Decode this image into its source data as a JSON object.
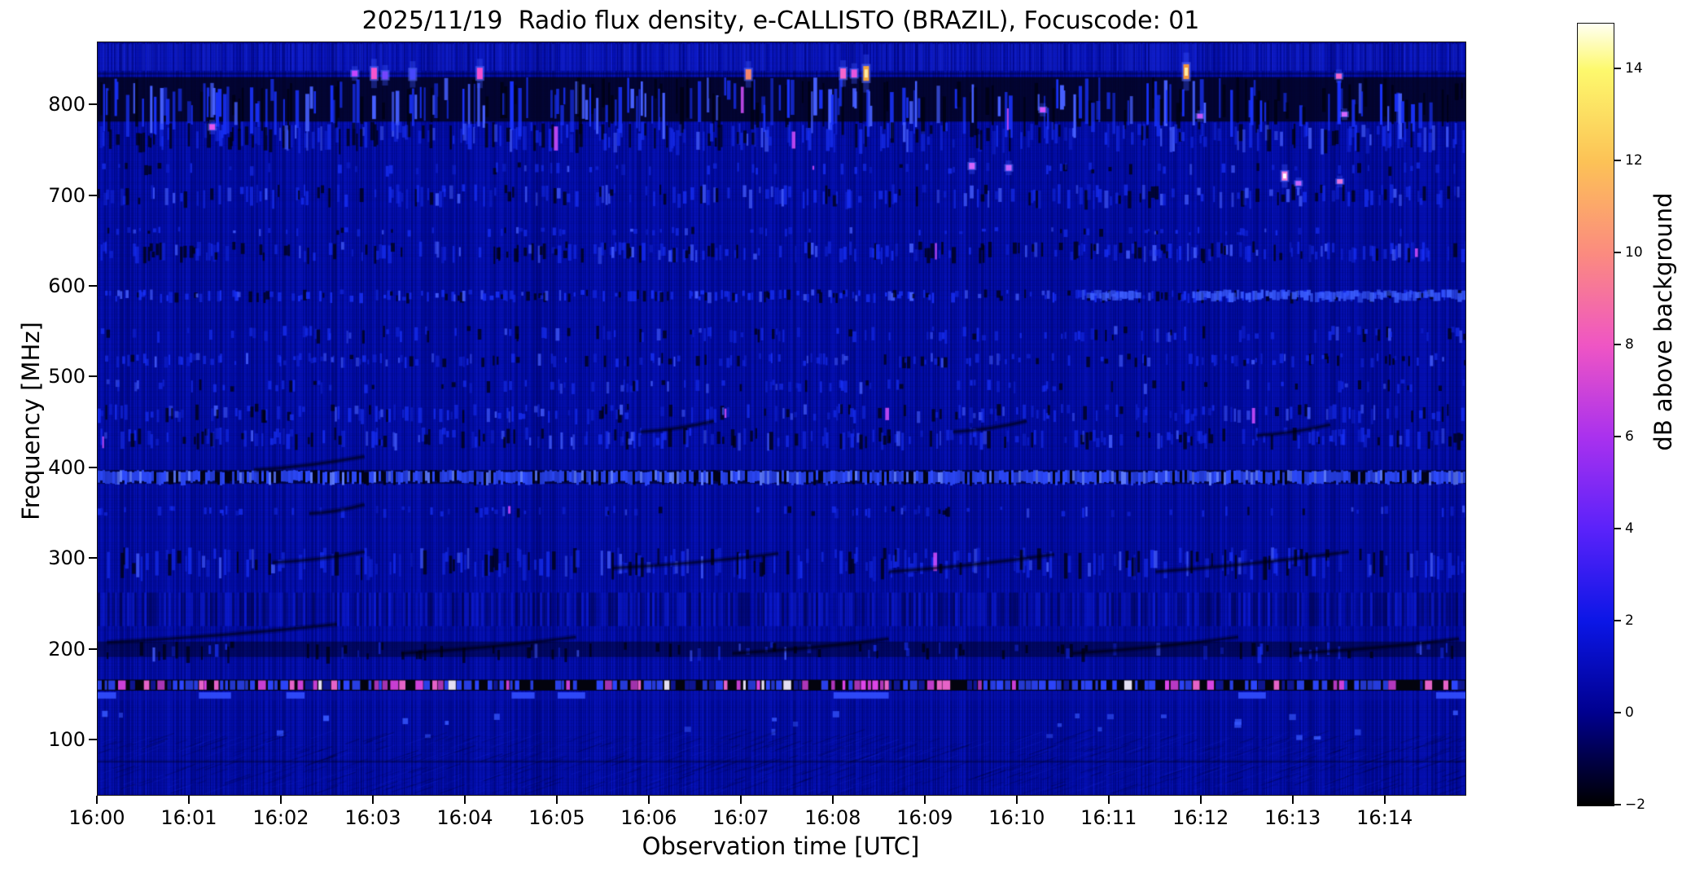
{
  "chart_data": {
    "type": "heatmap",
    "title": "2025/11/19  Radio flux density, e-CALLISTO (BRAZIL), Focuscode: 01",
    "xlabel": "Observation time [UTC]",
    "ylabel": "Frequency [MHz]",
    "colorbar_label": "dB above background",
    "x_tick_labels": [
      "16:00",
      "16:01",
      "16:02",
      "16:03",
      "16:04",
      "16:05",
      "16:06",
      "16:07",
      "16:08",
      "16:09",
      "16:10",
      "16:11",
      "16:12",
      "16:13",
      "16:14"
    ],
    "x_range_minutes": [
      0,
      14.87
    ],
    "y_ticks_mhz": [
      800,
      700,
      600,
      500,
      400,
      300,
      200,
      100
    ],
    "y_range_mhz": [
      40,
      869.3
    ],
    "grid": false,
    "background_db": 0.5,
    "colorbar": {
      "ticks": [
        "14",
        "12",
        "10",
        "8",
        "6",
        "4",
        "2",
        "0",
        "−2"
      ],
      "tick_values": [
        14,
        12,
        10,
        8,
        6,
        4,
        2,
        0,
        -2
      ],
      "range_db": [
        -2,
        15
      ],
      "colormap_stops": [
        {
          "v": -2,
          "c": "#000000"
        },
        {
          "v": 0,
          "c": "#00008e"
        },
        {
          "v": 2,
          "c": "#0b16e6"
        },
        {
          "v": 4,
          "c": "#5a22fa"
        },
        {
          "v": 6,
          "c": "#a931ee"
        },
        {
          "v": 8,
          "c": "#ef55c4"
        },
        {
          "v": 10,
          "c": "#fb8b7f"
        },
        {
          "v": 12,
          "c": "#fcc256"
        },
        {
          "v": 14,
          "c": "#fdf96d"
        },
        {
          "v": 15,
          "c": "#fffff2"
        }
      ]
    },
    "bands": [
      {
        "f": [
          838,
          869
        ],
        "type": "topstreaks"
      },
      {
        "f": [
          782,
          831
        ],
        "type": "darkband",
        "density": 0.6,
        "dark": 0.35,
        "magenta": 0.02
      },
      {
        "f": [
          756,
          782
        ],
        "type": "speckle",
        "density": 0.5,
        "dark": 0.3,
        "magenta": 0.012
      },
      {
        "f": [
          726,
          737
        ],
        "type": "speckle",
        "density": 0.2,
        "dark": 0.15
      },
      {
        "f": [
          693,
          713
        ],
        "type": "speckle",
        "density": 0.45,
        "dark": 0.25
      },
      {
        "f": [
          658,
          666
        ],
        "type": "speckle",
        "density": 0.15,
        "dark": 0.1
      },
      {
        "f": [
          632,
          650
        ],
        "type": "speckle",
        "density": 0.55,
        "dark": 0.35
      },
      {
        "f": [
          586,
          597
        ],
        "type": "brightrow",
        "density": 0.5,
        "segs": [
          [
            10.7,
            11.3
          ],
          [
            11.9,
            14.87
          ]
        ]
      },
      {
        "f": [
          543,
          557
        ],
        "type": "speckle",
        "density": 0.3,
        "dark": 0.2
      },
      {
        "f": [
          515,
          527
        ],
        "type": "speckle",
        "density": 0.4,
        "dark": 0.22
      },
      {
        "f": [
          486,
          498
        ],
        "type": "speckle",
        "density": 0.25,
        "dark": 0.15
      },
      {
        "f": [
          455,
          471
        ],
        "type": "speckle",
        "density": 0.4,
        "dark": 0.25
      },
      {
        "f": [
          427,
          445
        ],
        "type": "speckle",
        "density": 0.45,
        "dark": 0.3
      },
      {
        "f": [
          383,
          398
        ],
        "type": "brightband",
        "density": 0.8
      },
      {
        "f": [
          349,
          359
        ],
        "type": "speckle",
        "density": 0.2,
        "dark": 0.15
      },
      {
        "f": [
          286,
          313
        ],
        "type": "speckle",
        "density": 0.45,
        "dark": 0.3
      },
      {
        "f": [
          226,
          263
        ],
        "type": "vstripes",
        "density": 0.5
      },
      {
        "f": [
          192,
          209
        ],
        "type": "darkrow"
      },
      {
        "f": [
          155,
          167
        ],
        "type": "blackbright"
      },
      {
        "f": [
          144,
          154
        ],
        "type": "bluesegs",
        "segs": [
          [
            0,
            0.2
          ],
          [
            1.1,
            1.45
          ],
          [
            2.05,
            2.25
          ],
          [
            4.5,
            4.75
          ],
          [
            5.0,
            5.3
          ],
          [
            8.0,
            8.6
          ],
          [
            12.4,
            12.7
          ],
          [
            14.55,
            14.87
          ]
        ]
      },
      {
        "f": [
          104,
          133
        ],
        "type": "sparsedots"
      },
      {
        "f": [
          40,
          102
        ],
        "type": "hatch"
      }
    ],
    "bright_spots": [
      {
        "t": 2.79,
        "f": 835,
        "c": "#cc44ff",
        "s": 0.5
      },
      {
        "t": 3.0,
        "f": 835,
        "c": "#ff55cc",
        "s": 1.0
      },
      {
        "t": 3.12,
        "f": 833,
        "c": "#7744ff",
        "s": 0.7
      },
      {
        "t": 3.42,
        "f": 834,
        "c": "#4848ff",
        "s": 0.9
      },
      {
        "t": 4.15,
        "f": 835,
        "c": "#ff4fd0",
        "s": 1.0
      },
      {
        "t": 7.07,
        "f": 834,
        "c": "#ff8866",
        "s": 0.9
      },
      {
        "t": 8.1,
        "f": 835,
        "c": "#ff66cc",
        "s": 0.9
      },
      {
        "t": 8.22,
        "f": 835,
        "c": "#ee55dd",
        "s": 0.7
      },
      {
        "t": 8.35,
        "f": 835,
        "c": "#ffaa33",
        "s": 1.3
      },
      {
        "t": 11.83,
        "f": 837,
        "c": "#ff9933",
        "s": 1.3
      },
      {
        "t": 13.49,
        "f": 832,
        "c": "#ff66cc",
        "s": 0.45
      },
      {
        "t": 1.24,
        "f": 776,
        "c": "#ee55ee",
        "s": 0.5
      },
      {
        "t": 10.27,
        "f": 795,
        "c": "#dd55ff",
        "s": 0.45
      },
      {
        "t": 11.98,
        "f": 788,
        "c": "#cc55ff",
        "s": 0.4
      },
      {
        "t": 13.55,
        "f": 790,
        "c": "#dd66ff",
        "s": 0.4
      },
      {
        "t": 9.5,
        "f": 733,
        "c": "#dd66ff",
        "s": 0.55
      },
      {
        "t": 9.9,
        "f": 731,
        "c": "#cc66ff",
        "s": 0.5
      },
      {
        "t": 12.9,
        "f": 722,
        "c": "#ff88dd",
        "s": 0.8,
        "white": true
      },
      {
        "t": 13.05,
        "f": 714,
        "c": "#cc66ff",
        "s": 0.4
      },
      {
        "t": 13.5,
        "f": 716,
        "c": "#ee77dd",
        "s": 0.4
      }
    ],
    "diagonal_dark_streaks": [
      {
        "t0": 0.1,
        "f0": 208,
        "t1": 2.6,
        "f1": 228
      },
      {
        "t0": 1.9,
        "f0": 296,
        "t1": 2.9,
        "f1": 308
      },
      {
        "t0": 2.3,
        "f0": 350,
        "t1": 2.9,
        "f1": 360
      },
      {
        "t0": 1.7,
        "f0": 398,
        "t1": 2.9,
        "f1": 413
      },
      {
        "t0": 3.3,
        "f0": 196,
        "t1": 5.2,
        "f1": 214
      },
      {
        "t0": 5.6,
        "f0": 290,
        "t1": 7.4,
        "f1": 306
      },
      {
        "t0": 5.9,
        "f0": 440,
        "t1": 6.7,
        "f1": 452
      },
      {
        "t0": 6.9,
        "f0": 196,
        "t1": 8.6,
        "f1": 212
      },
      {
        "t0": 8.6,
        "f0": 286,
        "t1": 10.4,
        "f1": 305
      },
      {
        "t0": 9.3,
        "f0": 440,
        "t1": 10.1,
        "f1": 452
      },
      {
        "t0": 10.6,
        "f0": 196,
        "t1": 12.4,
        "f1": 214
      },
      {
        "t0": 11.5,
        "f0": 286,
        "t1": 13.6,
        "f1": 308
      },
      {
        "t0": 12.6,
        "f0": 436,
        "t1": 13.4,
        "f1": 448
      },
      {
        "t0": 13.0,
        "f0": 196,
        "t1": 14.8,
        "f1": 212
      }
    ]
  }
}
